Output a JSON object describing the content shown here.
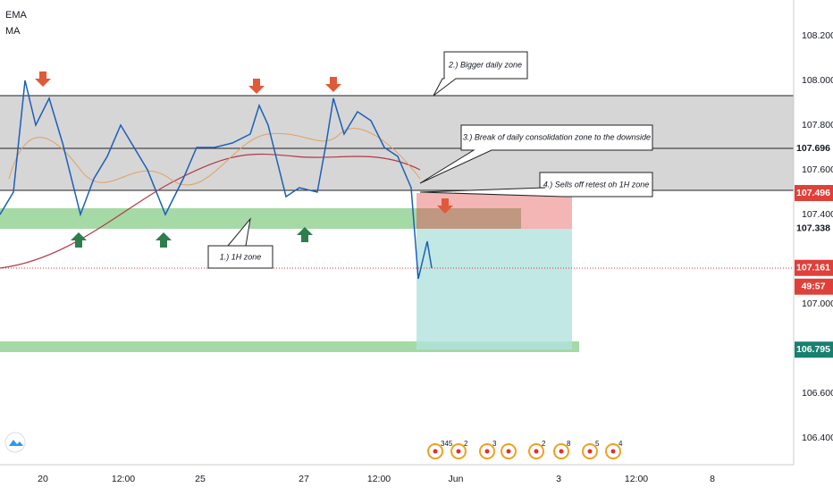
{
  "indicators": [
    "EMA",
    "MA"
  ],
  "annotations": {
    "zone_1h": "1.) 1H zone",
    "daily_zone": "2.) Bigger daily zone",
    "break": "3.) Break of daily consolidation zone to the downside",
    "retest": "4.) Sells off retest oh 1H zone"
  },
  "price_axis": [
    "108.200",
    "108.000",
    "107.800",
    "107.600",
    "107.400",
    "107.000",
    "106.600",
    "106.400"
  ],
  "price_badges": {
    "zone_top": "107.696",
    "zone_bottom": "107.496",
    "stop": "107.338",
    "last": "107.161",
    "countdown": "49:57",
    "target": "106.795"
  },
  "time_axis": [
    "20",
    "12:00",
    "25",
    "27",
    "12:00",
    "Jun",
    "3",
    "12:00",
    "8"
  ],
  "events": [
    "345",
    "2",
    "3",
    "2",
    "8",
    "5",
    "4"
  ]
}
